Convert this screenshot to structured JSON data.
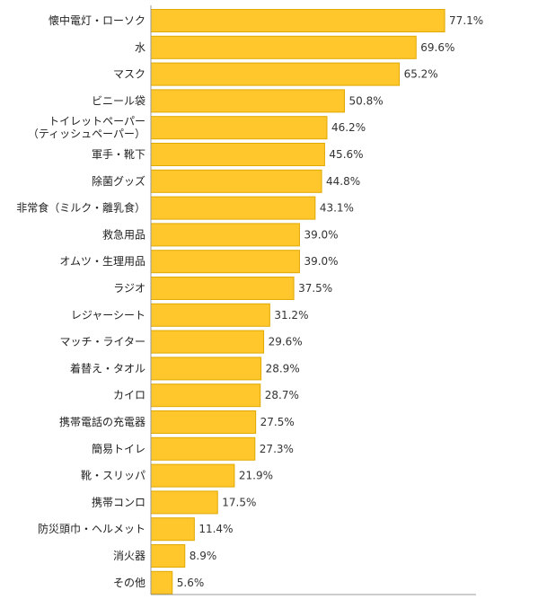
{
  "chart_data": {
    "type": "bar",
    "orientation": "horizontal",
    "categories": [
      "懐中電灯・ローソク",
      "水",
      "マスク",
      "ビニール袋",
      "トイレットペーパー\n（ティッシュペーパー）",
      "軍手・靴下",
      "除菌グッズ",
      "非常食（ミルク・離乳食）",
      "救急用品",
      "オムツ・生理用品",
      "ラジオ",
      "レジャーシート",
      "マッチ・ライター",
      "着替え・タオル",
      "カイロ",
      "携帯電話の充電器",
      "簡易トイレ",
      "靴・スリッパ",
      "携帯コンロ",
      "防災頭巾・ヘルメット",
      "消火器",
      "その他"
    ],
    "values": [
      77.1,
      69.6,
      65.2,
      50.8,
      46.2,
      45.6,
      44.8,
      43.1,
      39.0,
      39.0,
      37.5,
      31.2,
      29.6,
      28.9,
      28.7,
      27.5,
      27.3,
      21.9,
      17.5,
      11.4,
      8.9,
      5.6
    ],
    "value_labels": [
      "77.1%",
      "69.6%",
      "65.2%",
      "50.8%",
      "46.2%",
      "45.6%",
      "44.8%",
      "43.1%",
      "39.0%",
      "39.0%",
      "37.5%",
      "31.2%",
      "29.6%",
      "28.9%",
      "28.7%",
      "27.5%",
      "27.3%",
      "21.9%",
      "17.5%",
      "11.4%",
      "8.9%",
      "5.6%"
    ],
    "unit": "%",
    "xlim": [
      0,
      100
    ],
    "grid": false,
    "legend": "none",
    "colors": {
      "bar": "#ffc72c",
      "bar_edge": "#e0a800",
      "axis": "#999999"
    }
  }
}
